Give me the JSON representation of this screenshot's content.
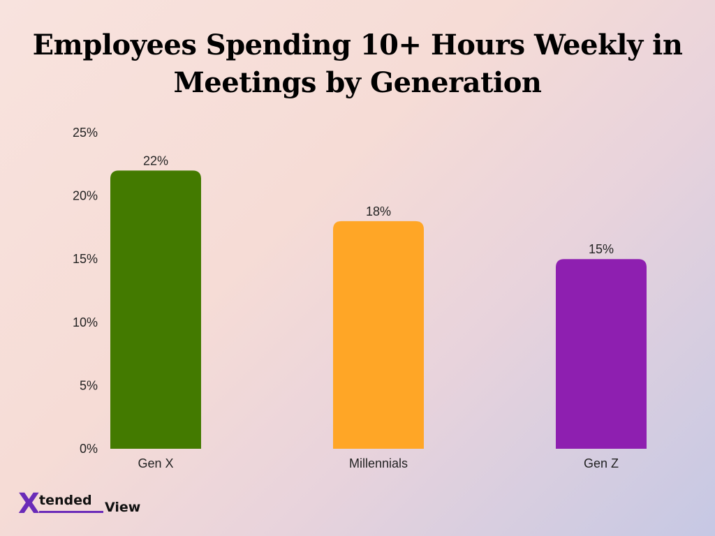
{
  "chart_data": {
    "type": "bar",
    "title": "Employees Spending 10+ Hours Weekly in Meetings by Generation",
    "categories": [
      "Gen X",
      "Millennials",
      "Gen Z"
    ],
    "values": [
      22,
      18,
      15
    ],
    "data_labels": [
      "22%",
      "18%",
      "15%"
    ],
    "colors": [
      "#437a00",
      "#ffa626",
      "#8e1fb0"
    ],
    "ylim": [
      0,
      25
    ],
    "yticks": [
      0,
      5,
      10,
      15,
      20,
      25
    ],
    "ytick_labels": [
      "0%",
      "5%",
      "10%",
      "15%",
      "20%",
      "25%"
    ],
    "xlabel": "",
    "ylabel": "",
    "grid": false
  },
  "logo": {
    "x_glyph": "X",
    "word1": "tended",
    "word2": "View",
    "accent": "#6a2bb8"
  }
}
